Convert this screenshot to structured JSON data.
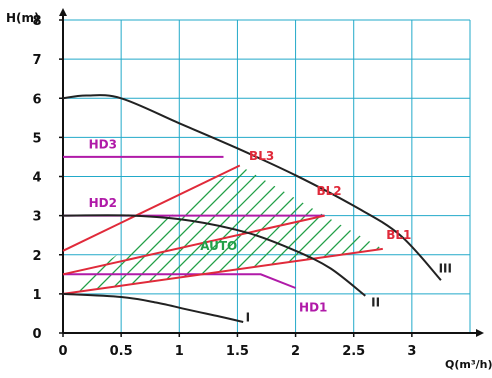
{
  "chart_data": {
    "type": "line",
    "xlabel": "Q(m³/h)",
    "ylabel": "H(m)",
    "xlim": [
      0,
      3.5
    ],
    "ylim": [
      0,
      8
    ],
    "x_ticks": [
      "0",
      "0.5",
      "1",
      "1.5",
      "2",
      "2.5",
      "3"
    ],
    "y_ticks": [
      "0",
      "1",
      "2",
      "3",
      "4",
      "5",
      "6",
      "7",
      "8"
    ],
    "grid": true,
    "colors": {
      "grid": "#22a9c9",
      "curve": "#222222",
      "bl": "#e02a3a",
      "hd": "#b01aa8",
      "auto": "#22a048",
      "axis": "#111111"
    },
    "curves": [
      {
        "name": "I",
        "points": [
          [
            0,
            1.0
          ],
          [
            0.5,
            0.92
          ],
          [
            0.8,
            0.78
          ],
          [
            1.1,
            0.58
          ],
          [
            1.35,
            0.42
          ],
          [
            1.55,
            0.28
          ]
        ]
      },
      {
        "name": "II",
        "points": [
          [
            0,
            3.0
          ],
          [
            0.6,
            3.0
          ],
          [
            1.1,
            2.87
          ],
          [
            1.6,
            2.55
          ],
          [
            2.0,
            2.1
          ],
          [
            2.3,
            1.65
          ],
          [
            2.6,
            0.95
          ]
        ]
      },
      {
        "name": "III",
        "points": [
          [
            0,
            6.0
          ],
          [
            0.2,
            6.07
          ],
          [
            0.5,
            6.0
          ],
          [
            1.0,
            5.36
          ],
          [
            1.5,
            4.72
          ],
          [
            2.0,
            4.03
          ],
          [
            2.5,
            3.25
          ],
          [
            2.9,
            2.5
          ],
          [
            3.25,
            1.35
          ]
        ]
      }
    ],
    "bl_lines": [
      {
        "name": "BL1",
        "points": [
          [
            0,
            1.0
          ],
          [
            2.75,
            2.15
          ]
        ]
      },
      {
        "name": "BL2",
        "points": [
          [
            0,
            1.5
          ],
          [
            2.25,
            3.0
          ]
        ]
      },
      {
        "name": "BL3",
        "points": [
          [
            0,
            2.1
          ],
          [
            1.52,
            4.28
          ]
        ]
      }
    ],
    "hd_lines": [
      {
        "name": "HD1",
        "points": [
          [
            0,
            1.5
          ],
          [
            1.7,
            1.5
          ],
          [
            2.0,
            1.15
          ]
        ]
      },
      {
        "name": "HD2",
        "points": [
          [
            0,
            3.0
          ],
          [
            2.25,
            3.0
          ]
        ]
      },
      {
        "name": "HD3",
        "points": [
          [
            0,
            4.5
          ],
          [
            1.38,
            4.5
          ]
        ]
      }
    ],
    "auto_region": {
      "name": "AUTO",
      "polygon": [
        [
          0,
          1.0
        ],
        [
          1.52,
          4.28
        ],
        [
          2.25,
          3.0
        ],
        [
          2.75,
          2.15
        ]
      ]
    },
    "labels": [
      {
        "text": "HD3",
        "x": 0.22,
        "y": 4.72,
        "color": "hd"
      },
      {
        "text": "HD2",
        "x": 0.22,
        "y": 3.22,
        "color": "hd"
      },
      {
        "text": "HD1",
        "x": 2.03,
        "y": 0.55,
        "color": "hd"
      },
      {
        "text": "BL3",
        "x": 1.6,
        "y": 4.42,
        "color": "bl"
      },
      {
        "text": "BL2",
        "x": 2.18,
        "y": 3.53,
        "color": "bl"
      },
      {
        "text": "BL1",
        "x": 2.78,
        "y": 2.4,
        "color": "bl"
      },
      {
        "text": "AUTO",
        "x": 1.18,
        "y": 2.12,
        "color": "auto"
      },
      {
        "text": "I",
        "x": 1.57,
        "y": 0.3,
        "color": "curve"
      },
      {
        "text": "II",
        "x": 2.65,
        "y": 0.68,
        "color": "curve"
      },
      {
        "text": "III",
        "x": 3.23,
        "y": 1.55,
        "color": "curve"
      }
    ]
  }
}
